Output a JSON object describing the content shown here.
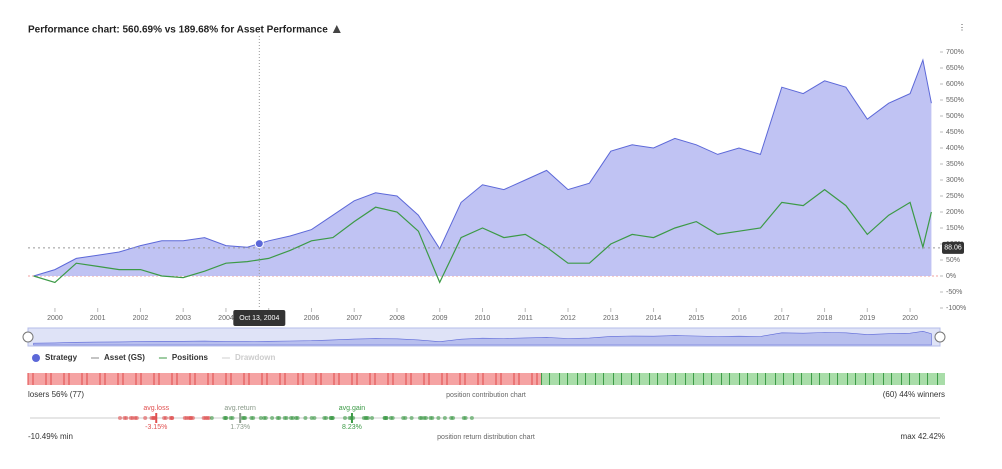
{
  "chart_data": [
    {
      "type": "area",
      "title": "Performance chart: 560.69% vs 189.68% for Asset Performance",
      "x": [
        1999.5,
        2000,
        2000.5,
        2001,
        2001.5,
        2002,
        2002.5,
        2003,
        2003.5,
        2004,
        2004.5,
        2005,
        2005.5,
        2006,
        2006.5,
        2007,
        2007.5,
        2008,
        2008.5,
        2009,
        2009.5,
        2010,
        2010.5,
        2011,
        2011.5,
        2012,
        2012.5,
        2013,
        2013.5,
        2014,
        2014.5,
        2015,
        2015.5,
        2016,
        2016.5,
        2017,
        2017.5,
        2018,
        2018.5,
        2019,
        2019.5,
        2020,
        2020.3,
        2020.5
      ],
      "series": [
        {
          "name": "Strategy",
          "color": "#5c68d8",
          "fill": "#b9bdf2",
          "values": [
            0,
            20,
            55,
            65,
            75,
            95,
            110,
            110,
            120,
            95,
            90,
            110,
            125,
            145,
            190,
            235,
            260,
            250,
            190,
            85,
            230,
            285,
            270,
            300,
            330,
            270,
            290,
            390,
            410,
            400,
            430,
            410,
            380,
            400,
            380,
            590,
            570,
            610,
            590,
            490,
            540,
            570,
            675,
            540
          ]
        },
        {
          "name": "Asset (GS)",
          "color": "#3c9a46",
          "values": [
            0,
            -20,
            40,
            30,
            20,
            20,
            0,
            -5,
            15,
            40,
            45,
            55,
            80,
            110,
            120,
            170,
            215,
            200,
            140,
            -20,
            120,
            150,
            120,
            130,
            90,
            40,
            40,
            100,
            130,
            120,
            150,
            170,
            130,
            140,
            150,
            230,
            220,
            270,
            220,
            130,
            190,
            230,
            90,
            200
          ]
        }
      ],
      "legend_extra": [
        {
          "name": "Positions",
          "color": "#3c9a46"
        },
        {
          "name": "Drawdown",
          "color": "#cfcfcf"
        }
      ],
      "xlim": [
        1999.37,
        2020.7
      ],
      "xticks": [
        2000,
        2001,
        2002,
        2003,
        2004,
        2005,
        2006,
        2007,
        2008,
        2009,
        2010,
        2011,
        2012,
        2013,
        2014,
        2015,
        2016,
        2017,
        2018,
        2019,
        2020
      ],
      "ylim": [
        -100,
        750
      ],
      "yticks": [
        {
          "value": -100,
          "label": "-100%"
        },
        {
          "value": -50,
          "label": "-50%"
        },
        {
          "value": 0,
          "label": "0%"
        },
        {
          "value": 50,
          "label": "50%"
        },
        {
          "value": 100,
          "label": "100%"
        },
        {
          "value": 150,
          "label": "150%"
        },
        {
          "value": 200,
          "label": "200%"
        },
        {
          "value": 250,
          "label": "250%"
        },
        {
          "value": 300,
          "label": "300%"
        },
        {
          "value": 350,
          "label": "350%"
        },
        {
          "value": 400,
          "label": "400%"
        },
        {
          "value": 450,
          "label": "450%"
        },
        {
          "value": 500,
          "label": "500%"
        },
        {
          "value": 550,
          "label": "550%"
        },
        {
          "value": 600,
          "label": "600%"
        },
        {
          "value": 650,
          "label": "650%"
        },
        {
          "value": 700,
          "label": "700%"
        }
      ],
      "grid": false,
      "crosshair": {
        "x": 2004.78,
        "label": "Oct 13, 2004"
      },
      "last_value": 88.06
    },
    {
      "type": "contribution",
      "title": "position contribution chart",
      "values": [
        56,
        44
      ],
      "value_labels": [
        "losers 56% (77)",
        "(60) 44% winners"
      ],
      "colors": [
        "#f5a3a3",
        "#a9dda9"
      ]
    },
    {
      "type": "strip",
      "title": "position return distribution chart",
      "categories": [
        "avg.loss",
        "avg.return",
        "avg.gain"
      ],
      "values": [
        -3.15,
        1.73,
        8.23
      ],
      "value_labels": [
        "-3.15%",
        "1.73%",
        "8.23%"
      ],
      "colors": [
        "#e05050",
        "#8a9a8a",
        "#3c9a46"
      ],
      "xlim": [
        -10.49,
        42.42
      ],
      "xlim_labels": [
        "-10.49% min",
        "max 42.42%"
      ]
    }
  ]
}
